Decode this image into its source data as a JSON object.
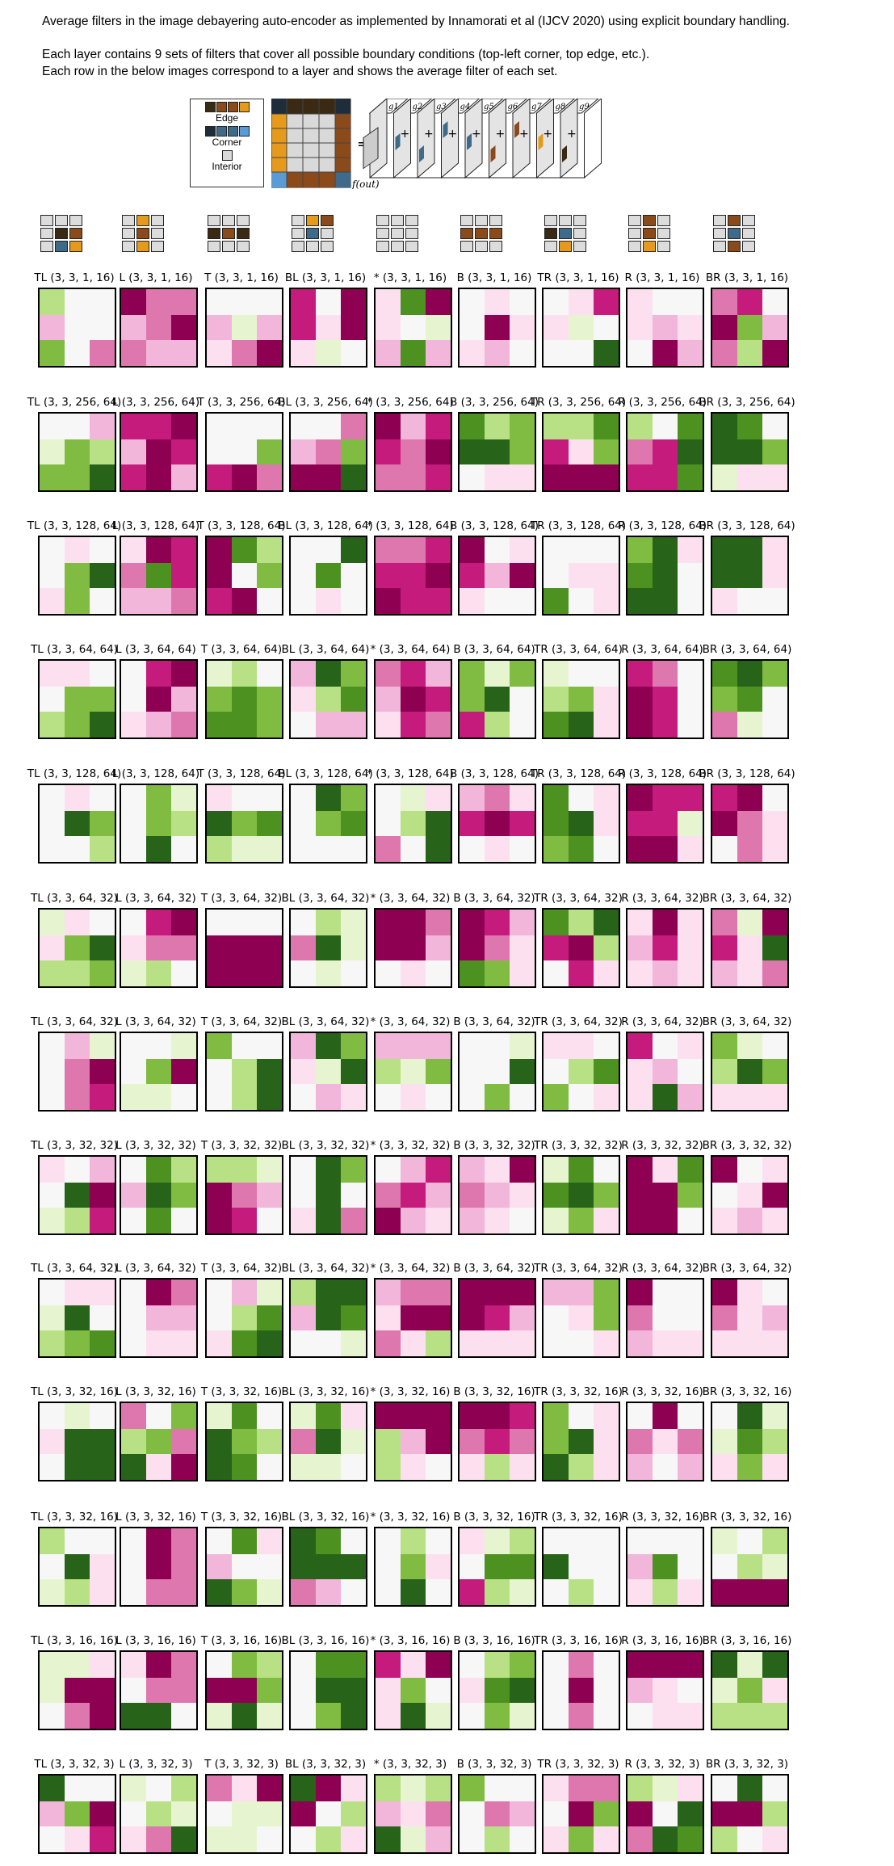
{
  "header": {
    "line1": "Average filters in the image debayering auto-encoder as implemented by Innamorati et al (IJCV 2020) using explicit boundary handling.",
    "line2": "Each layer contains 9 sets of filters that cover all possible boundary conditions (top-left corner, top edge, etc.).",
    "line3": "Each row in the below images correspond to a layer and shows the average filter of each set."
  },
  "legend": {
    "edge": "Edge",
    "corner": "Corner",
    "interior": "Interior",
    "colors": {
      "edge_a": "#3a2a14",
      "edge_b": "#8b4a1a",
      "edge_c": "#e69a1c",
      "corner_a": "#1f2d3a",
      "corner_b": "#3e6b8a",
      "corner_c": "#5a9bd5",
      "interior": "#d9d9d9"
    }
  },
  "equation": {
    "equals": "=",
    "plus": "+",
    "output": "f(out)",
    "g_labels": [
      "g1",
      "g2",
      "g3",
      "g4",
      "g5",
      "g6",
      "g7",
      "g8",
      "g9"
    ]
  },
  "sets": [
    "TL",
    "L",
    "T",
    "BL",
    "*",
    "B",
    "TR",
    "R",
    "BR"
  ],
  "palette": [
    "#8e0152",
    "#c51b7d",
    "#de77ae",
    "#f1b6da",
    "#fde0ef",
    "#f7f7f7",
    "#e6f5d0",
    "#b8e186",
    "#7fbc41",
    "#4d9221",
    "#276419"
  ],
  "layers": [
    {
      "shape": "(3, 3, 1, 16)"
    },
    {
      "shape": "(3, 3, 256, 64)"
    },
    {
      "shape": "(3, 3, 128, 64)"
    },
    {
      "shape": "(3, 3, 64, 64)"
    },
    {
      "shape": "(3, 3, 128, 64)"
    },
    {
      "shape": "(3, 3, 64, 32)"
    },
    {
      "shape": "(3, 3, 64, 32)"
    },
    {
      "shape": "(3, 3, 32, 32)"
    },
    {
      "shape": "(3, 3, 64, 32)"
    },
    {
      "shape": "(3, 3, 32, 16)"
    },
    {
      "shape": "(3, 3, 32, 16)"
    },
    {
      "shape": "(3, 3, 16, 16)"
    },
    {
      "shape": "(3, 3, 32, 3)"
    }
  ],
  "filters": [
    [
      [
        7,
        5,
        5,
        3,
        5,
        5,
        8,
        5,
        2
      ],
      [
        0,
        2,
        2,
        3,
        2,
        0,
        2,
        3,
        3
      ],
      [
        5,
        5,
        5,
        3,
        6,
        3,
        4,
        2,
        0
      ],
      [
        1,
        5,
        0,
        1,
        4,
        0,
        4,
        6,
        5
      ],
      [
        4,
        9,
        0,
        4,
        5,
        6,
        3,
        9,
        3
      ],
      [
        5,
        4,
        5,
        5,
        0,
        4,
        4,
        3,
        5
      ],
      [
        5,
        4,
        1,
        4,
        6,
        5,
        5,
        5,
        10
      ],
      [
        4,
        5,
        5,
        4,
        3,
        4,
        5,
        0,
        3
      ],
      [
        2,
        1,
        5,
        0,
        8,
        3,
        2,
        7,
        0
      ]
    ],
    [
      [
        5,
        5,
        3,
        6,
        8,
        7,
        8,
        8,
        10
      ],
      [
        1,
        1,
        0,
        3,
        0,
        1,
        1,
        0,
        3
      ],
      [
        5,
        5,
        5,
        5,
        5,
        8,
        1,
        0,
        2
      ],
      [
        5,
        5,
        2,
        3,
        2,
        8,
        0,
        0,
        10
      ],
      [
        0,
        3,
        1,
        1,
        2,
        0,
        2,
        2,
        1
      ],
      [
        9,
        7,
        8,
        10,
        10,
        8,
        5,
        4,
        4
      ],
      [
        7,
        7,
        9,
        1,
        4,
        8,
        0,
        0,
        0
      ],
      [
        7,
        5,
        9,
        2,
        1,
        10,
        1,
        1,
        9
      ],
      [
        10,
        9,
        5,
        10,
        10,
        8,
        6,
        4,
        4
      ]
    ],
    [
      [
        5,
        4,
        5,
        5,
        8,
        10,
        4,
        8,
        5
      ],
      [
        4,
        0,
        1,
        2,
        9,
        1,
        3,
        3,
        2
      ],
      [
        0,
        9,
        7,
        0,
        5,
        8,
        1,
        0,
        5
      ],
      [
        5,
        5,
        10,
        5,
        9,
        5,
        5,
        4,
        5
      ],
      [
        2,
        2,
        1,
        1,
        1,
        0,
        0,
        1,
        1
      ],
      [
        0,
        5,
        4,
        1,
        3,
        0,
        4,
        5,
        5
      ],
      [
        5,
        5,
        5,
        5,
        4,
        4,
        9,
        5,
        4
      ],
      [
        8,
        10,
        4,
        9,
        10,
        5,
        10,
        10,
        5
      ],
      [
        10,
        10,
        4,
        10,
        10,
        4,
        4,
        5,
        5
      ]
    ],
    [
      [
        4,
        4,
        5,
        5,
        8,
        8,
        7,
        8,
        10
      ],
      [
        5,
        1,
        0,
        5,
        0,
        3,
        4,
        3,
        2
      ],
      [
        6,
        7,
        5,
        8,
        9,
        8,
        9,
        9,
        8
      ],
      [
        3,
        10,
        8,
        4,
        7,
        9,
        5,
        3,
        3
      ],
      [
        2,
        1,
        3,
        3,
        0,
        1,
        4,
        1,
        2
      ],
      [
        8,
        6,
        8,
        8,
        10,
        5,
        1,
        7,
        5
      ],
      [
        6,
        5,
        5,
        7,
        8,
        4,
        9,
        10,
        4
      ],
      [
        1,
        2,
        5,
        0,
        1,
        5,
        0,
        1,
        5
      ],
      [
        9,
        10,
        8,
        8,
        9,
        5,
        2,
        6,
        5
      ]
    ],
    [
      [
        5,
        4,
        5,
        5,
        10,
        8,
        5,
        5,
        7
      ],
      [
        5,
        8,
        6,
        5,
        8,
        7,
        5,
        10,
        5
      ],
      [
        4,
        5,
        5,
        10,
        8,
        9,
        7,
        6,
        6
      ],
      [
        5,
        10,
        8,
        5,
        8,
        9,
        5,
        5,
        5
      ],
      [
        5,
        6,
        4,
        5,
        7,
        10,
        2,
        5,
        10
      ],
      [
        3,
        2,
        4,
        1,
        0,
        1,
        5,
        4,
        5
      ],
      [
        9,
        5,
        4,
        9,
        10,
        4,
        8,
        9,
        5
      ],
      [
        0,
        1,
        1,
        1,
        1,
        6,
        0,
        0,
        4
      ],
      [
        1,
        0,
        5,
        0,
        2,
        4,
        5,
        2,
        4
      ]
    ],
    [
      [
        6,
        4,
        5,
        4,
        8,
        10,
        7,
        7,
        8
      ],
      [
        5,
        1,
        0,
        4,
        2,
        2,
        6,
        7,
        5
      ],
      [
        5,
        5,
        5,
        0,
        0,
        0,
        0,
        0,
        0
      ],
      [
        5,
        7,
        6,
        2,
        10,
        6,
        5,
        6,
        5
      ],
      [
        0,
        0,
        2,
        0,
        0,
        3,
        5,
        4,
        5
      ],
      [
        0,
        1,
        3,
        0,
        2,
        4,
        9,
        8,
        4
      ],
      [
        9,
        7,
        10,
        1,
        0,
        7,
        5,
        1,
        4
      ],
      [
        4,
        0,
        4,
        3,
        1,
        4,
        4,
        3,
        4
      ],
      [
        2,
        6,
        0,
        1,
        4,
        10,
        3,
        4,
        2
      ]
    ],
    [
      [
        5,
        3,
        6,
        5,
        2,
        0,
        5,
        2,
        1
      ],
      [
        5,
        5,
        6,
        5,
        8,
        0,
        6,
        6,
        5
      ],
      [
        8,
        5,
        5,
        5,
        7,
        10,
        5,
        7,
        10
      ],
      [
        3,
        10,
        8,
        4,
        6,
        10,
        5,
        3,
        4
      ],
      [
        3,
        3,
        3,
        7,
        6,
        8,
        5,
        4,
        5
      ],
      [
        5,
        5,
        6,
        5,
        5,
        10,
        5,
        8,
        5
      ],
      [
        4,
        4,
        5,
        5,
        7,
        9,
        8,
        5,
        4
      ],
      [
        1,
        5,
        4,
        4,
        3,
        5,
        4,
        10,
        3
      ],
      [
        8,
        6,
        5,
        7,
        10,
        8,
        4,
        4,
        4
      ]
    ],
    [
      [
        4,
        5,
        3,
        5,
        10,
        0,
        6,
        7,
        1
      ],
      [
        5,
        9,
        7,
        3,
        10,
        8,
        5,
        9,
        5
      ],
      [
        7,
        7,
        6,
        0,
        2,
        3,
        0,
        1,
        5
      ],
      [
        5,
        10,
        8,
        5,
        10,
        5,
        4,
        10,
        2
      ],
      [
        5,
        3,
        1,
        2,
        1,
        3,
        0,
        3,
        4
      ],
      [
        3,
        4,
        0,
        2,
        3,
        4,
        3,
        4,
        5
      ],
      [
        6,
        9,
        5,
        9,
        10,
        8,
        6,
        8,
        4
      ],
      [
        0,
        4,
        9,
        0,
        0,
        8,
        0,
        0,
        5
      ],
      [
        0,
        5,
        4,
        5,
        4,
        0,
        4,
        3,
        4
      ]
    ],
    [
      [
        5,
        4,
        4,
        6,
        10,
        5,
        7,
        8,
        9
      ],
      [
        5,
        0,
        2,
        5,
        3,
        3,
        5,
        4,
        4
      ],
      [
        5,
        3,
        6,
        5,
        7,
        9,
        4,
        9,
        10
      ],
      [
        7,
        10,
        10,
        3,
        10,
        9,
        5,
        5,
        6
      ],
      [
        3,
        2,
        2,
        4,
        0,
        0,
        2,
        4,
        7
      ],
      [
        0,
        0,
        0,
        0,
        1,
        3,
        4,
        4,
        4
      ],
      [
        3,
        3,
        8,
        5,
        4,
        8,
        5,
        5,
        4
      ],
      [
        0,
        5,
        5,
        2,
        5,
        5,
        3,
        4,
        4
      ],
      [
        0,
        4,
        5,
        2,
        4,
        3,
        4,
        4,
        4
      ]
    ],
    [
      [
        5,
        6,
        5,
        4,
        10,
        10,
        5,
        10,
        10
      ],
      [
        2,
        5,
        8,
        7,
        8,
        2,
        10,
        4,
        0
      ],
      [
        6,
        9,
        5,
        10,
        8,
        7,
        10,
        9,
        5
      ],
      [
        6,
        9,
        4,
        2,
        10,
        6,
        6,
        6,
        5
      ],
      [
        0,
        0,
        0,
        7,
        3,
        0,
        7,
        4,
        5
      ],
      [
        0,
        0,
        1,
        2,
        1,
        2,
        4,
        7,
        4
      ],
      [
        8,
        5,
        4,
        8,
        10,
        4,
        10,
        7,
        4
      ],
      [
        5,
        0,
        5,
        2,
        4,
        2,
        3,
        5,
        3
      ],
      [
        5,
        10,
        6,
        6,
        9,
        7,
        4,
        8,
        4
      ]
    ],
    [
      [
        7,
        5,
        5,
        5,
        10,
        4,
        6,
        7,
        4
      ],
      [
        5,
        0,
        2,
        5,
        0,
        2,
        5,
        2,
        2
      ],
      [
        5,
        9,
        4,
        3,
        5,
        5,
        10,
        8,
        6
      ],
      [
        10,
        9,
        5,
        10,
        10,
        10,
        2,
        3,
        5
      ],
      [
        5,
        7,
        5,
        5,
        8,
        4,
        5,
        10,
        5
      ],
      [
        4,
        6,
        7,
        5,
        9,
        9,
        1,
        7,
        6
      ],
      [
        5,
        5,
        5,
        10,
        5,
        5,
        5,
        7,
        5
      ],
      [
        5,
        5,
        5,
        3,
        9,
        5,
        4,
        7,
        4
      ],
      [
        6,
        5,
        7,
        5,
        7,
        6,
        0,
        0,
        0
      ]
    ],
    [
      [
        6,
        6,
        4,
        6,
        0,
        0,
        5,
        2,
        0
      ],
      [
        4,
        0,
        2,
        5,
        2,
        2,
        10,
        10,
        5
      ],
      [
        5,
        8,
        7,
        0,
        0,
        8,
        6,
        10,
        6
      ],
      [
        5,
        9,
        9,
        5,
        10,
        10,
        5,
        8,
        10
      ],
      [
        1,
        4,
        0,
        4,
        8,
        5,
        4,
        10,
        6
      ],
      [
        5,
        7,
        8,
        4,
        9,
        10,
        5,
        8,
        6
      ],
      [
        5,
        2,
        5,
        5,
        0,
        5,
        5,
        2,
        5
      ],
      [
        0,
        0,
        0,
        3,
        4,
        5,
        5,
        4,
        4
      ],
      [
        10,
        6,
        10,
        6,
        8,
        4,
        7,
        7,
        7
      ]
    ],
    [
      [
        10,
        5,
        5,
        3,
        8,
        0,
        5,
        4,
        1
      ],
      [
        6,
        5,
        7,
        5,
        7,
        6,
        4,
        2,
        10
      ],
      [
        2,
        4,
        0,
        5,
        6,
        6,
        6,
        6,
        5
      ],
      [
        10,
        0,
        4,
        0,
        5,
        7,
        5,
        7,
        4
      ],
      [
        7,
        6,
        7,
        3,
        4,
        2,
        10,
        6,
        3
      ],
      [
        8,
        5,
        5,
        5,
        2,
        3,
        5,
        7,
        5
      ],
      [
        4,
        2,
        2,
        5,
        0,
        8,
        4,
        8,
        4
      ],
      [
        7,
        6,
        4,
        0,
        5,
        10,
        2,
        10,
        9
      ],
      [
        5,
        10,
        5,
        0,
        0,
        7,
        7,
        5,
        4
      ]
    ]
  ],
  "icon_colors": {
    "interior": "#dcdcdc",
    "edge": "#8b4a1a",
    "corner": "#3a2a14",
    "orange": "#e69a1c",
    "blue": "#3e6b8a"
  }
}
